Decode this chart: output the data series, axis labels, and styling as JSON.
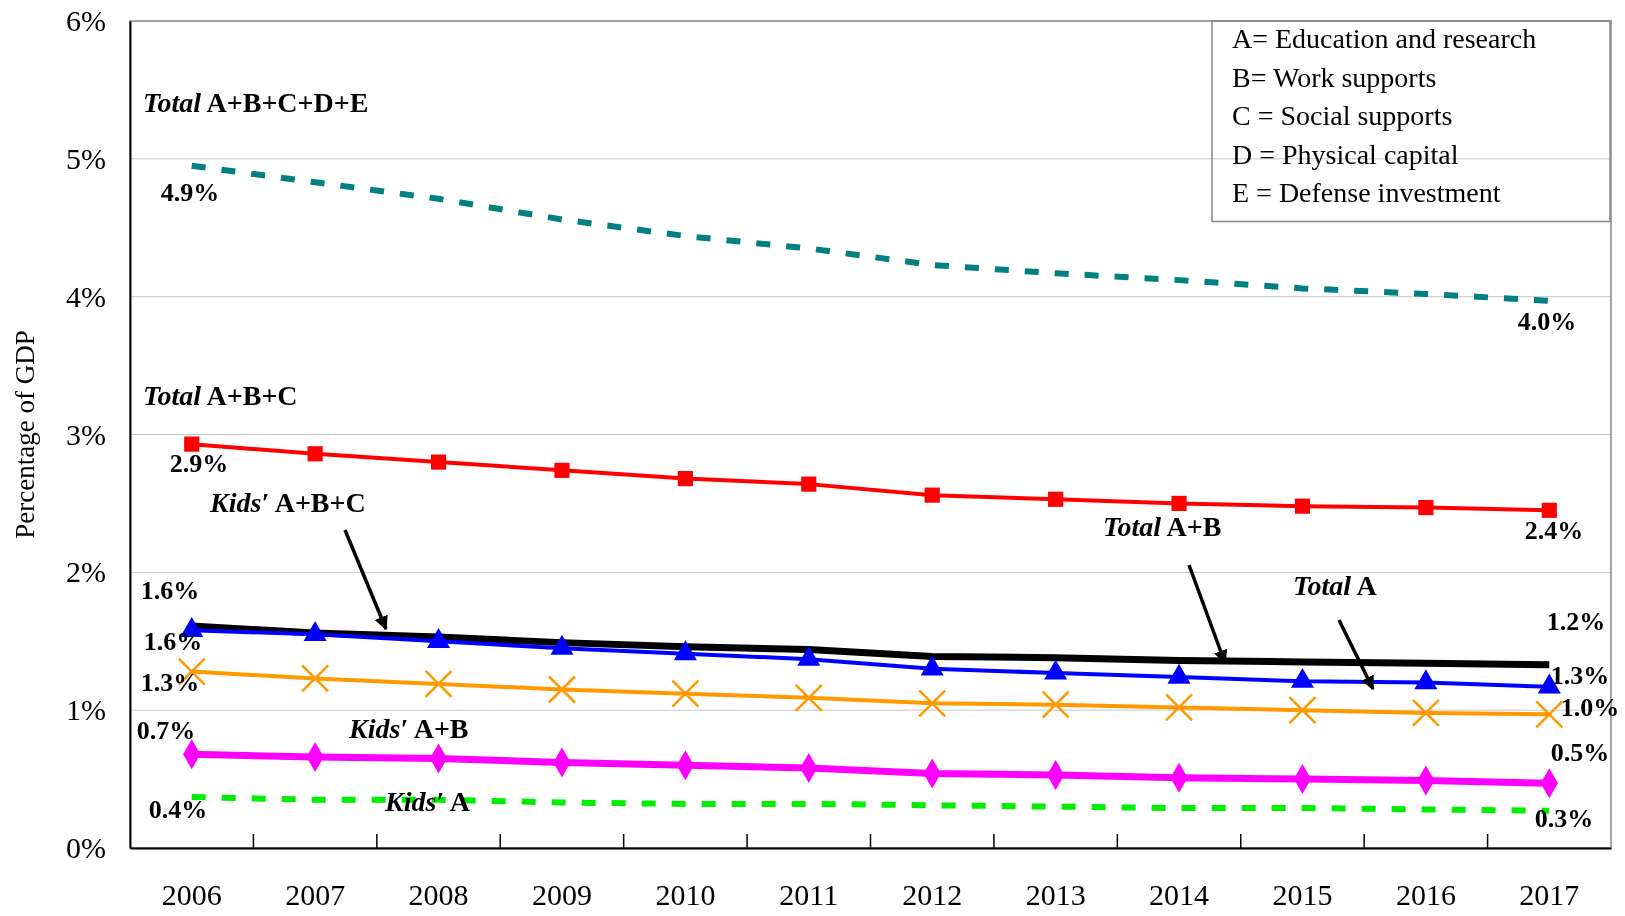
{
  "chart_data": {
    "type": "line",
    "ylabel": "Percentage of GDP",
    "categories": [
      "2006",
      "2007",
      "2008",
      "2009",
      "2010",
      "2011",
      "2012",
      "2013",
      "2014",
      "2015",
      "2016",
      "2017"
    ],
    "ylim": [
      0,
      6
    ],
    "yticks": [
      {
        "value": 0,
        "label": "0%"
      },
      {
        "value": 1,
        "label": "1%"
      },
      {
        "value": 2,
        "label": "2%"
      },
      {
        "value": 3,
        "label": "3%"
      },
      {
        "value": 4,
        "label": "4%"
      },
      {
        "value": 5,
        "label": "5%"
      },
      {
        "value": 6,
        "label": "6%"
      }
    ],
    "grid": "y",
    "annotations": [
      "A= Education and research",
      "B= Work supports",
      "C = Social supports",
      "D = Physical capital",
      "E = Defense investment"
    ],
    "series": [
      {
        "name": "Total A+B+C+D+E",
        "color": "#008080",
        "marker": "none",
        "line_style": "dashed",
        "values": [
          4.95,
          4.83,
          4.71,
          4.56,
          4.44,
          4.35,
          4.23,
          4.17,
          4.12,
          4.06,
          4.02,
          3.97
        ],
        "value_labels": [
          "4.9%",
          null,
          null,
          null,
          null,
          null,
          null,
          null,
          null,
          null,
          null,
          "4.0%"
        ]
      },
      {
        "name": "Total A+B+C",
        "color": "#ff0000",
        "marker": "square",
        "line_style": "solid",
        "values": [
          2.93,
          2.86,
          2.8,
          2.74,
          2.68,
          2.64,
          2.56,
          2.53,
          2.5,
          2.48,
          2.47,
          2.45
        ],
        "value_labels": [
          "2.9%",
          null,
          null,
          null,
          null,
          null,
          null,
          null,
          null,
          null,
          null,
          "2.4%"
        ]
      },
      {
        "name": "Total A+B",
        "color": "#000000",
        "marker": "none",
        "line_style": "solid",
        "values": [
          1.61,
          1.56,
          1.53,
          1.49,
          1.46,
          1.44,
          1.39,
          1.38,
          1.36,
          1.35,
          1.34,
          1.33
        ],
        "value_labels": [
          "1.6%",
          null,
          null,
          null,
          null,
          null,
          null,
          null,
          null,
          null,
          null,
          "1.3%"
        ]
      },
      {
        "name": "Kids′ A+B+C",
        "color": "#0000ff",
        "marker": "triangle",
        "line_style": "solid",
        "values": [
          1.58,
          1.55,
          1.5,
          1.45,
          1.41,
          1.37,
          1.3,
          1.27,
          1.24,
          1.21,
          1.2,
          1.17
        ],
        "value_labels": [
          "1.6%",
          null,
          null,
          null,
          null,
          null,
          null,
          null,
          null,
          null,
          null,
          "1.2%"
        ]
      },
      {
        "name": "Total A",
        "color": "#ff9900",
        "marker": "cross",
        "line_style": "solid",
        "values": [
          1.28,
          1.23,
          1.19,
          1.15,
          1.12,
          1.09,
          1.05,
          1.04,
          1.02,
          1.0,
          0.98,
          0.97
        ],
        "value_labels": [
          "1.3%",
          null,
          null,
          null,
          null,
          null,
          null,
          null,
          null,
          null,
          null,
          "1.0%"
        ]
      },
      {
        "name": "Kids′ A+B",
        "color": "#ff00ff",
        "marker": "diamond",
        "line_style": "solid",
        "values": [
          0.68,
          0.66,
          0.65,
          0.62,
          0.6,
          0.58,
          0.54,
          0.53,
          0.51,
          0.5,
          0.49,
          0.47
        ],
        "value_labels": [
          "0.7%",
          null,
          null,
          null,
          null,
          null,
          null,
          null,
          null,
          null,
          null,
          "0.5%"
        ]
      },
      {
        "name": "Kids′ A",
        "color": "#00ee00",
        "marker": "none",
        "line_style": "dashed",
        "values": [
          0.37,
          0.35,
          0.35,
          0.33,
          0.32,
          0.32,
          0.31,
          0.3,
          0.29,
          0.29,
          0.28,
          0.27
        ],
        "value_labels": [
          "0.4%",
          null,
          null,
          null,
          null,
          null,
          null,
          null,
          null,
          null,
          null,
          "0.3%"
        ]
      }
    ]
  }
}
